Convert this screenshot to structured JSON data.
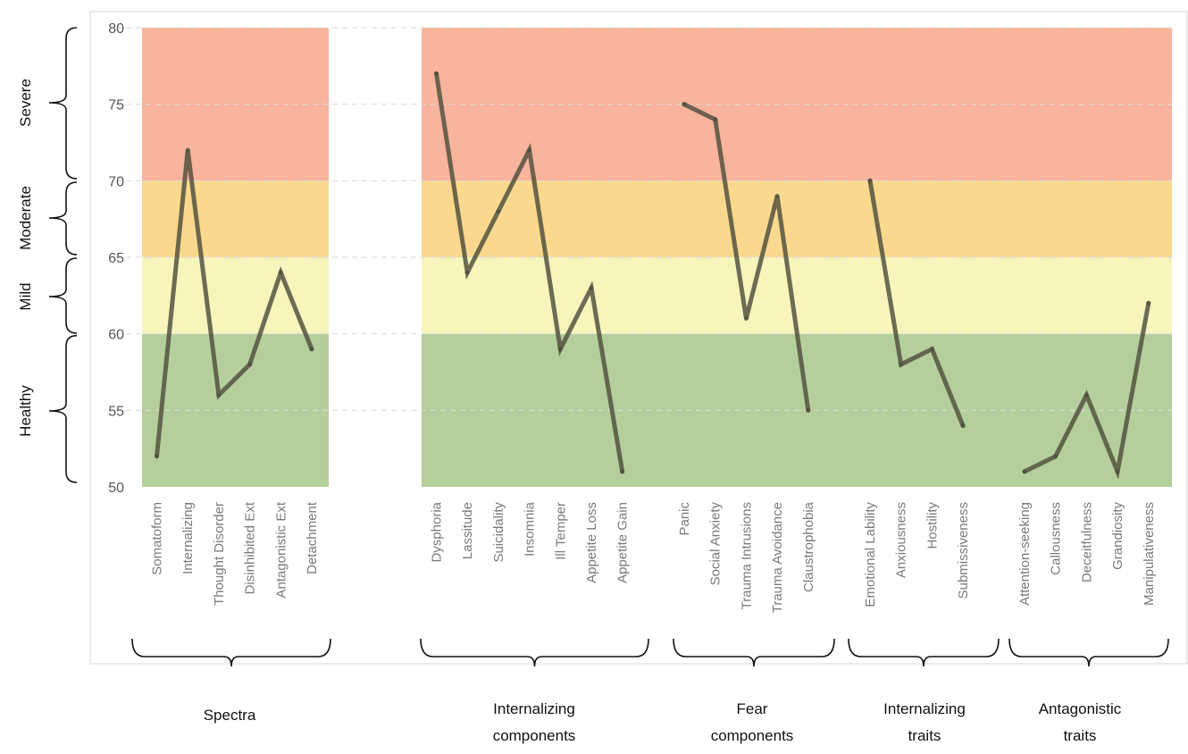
{
  "chart_data": {
    "type": "line",
    "ylim": [
      50,
      80
    ],
    "y_ticks": [
      50,
      55,
      60,
      65,
      70,
      75,
      80
    ],
    "grid": "dashed horizontal",
    "bands": [
      {
        "from": 50,
        "to": 60,
        "color": "#b5cf9c",
        "label": "Healthy"
      },
      {
        "from": 60,
        "to": 65,
        "color": "#f7f4bc",
        "label": "Mild"
      },
      {
        "from": 65,
        "to": 70,
        "color": "#fad98e",
        "label": "Moderate"
      },
      {
        "from": 70,
        "to": 80,
        "color": "#f8b49c",
        "label": "Severe"
      }
    ],
    "line_color": "#4e4e3c",
    "groups": [
      {
        "name": [
          "Spectra"
        ],
        "categories": [
          "Somatoform",
          "Internalizing",
          "Thought Disorder",
          "Disinhibited Ext",
          "Antagonistic Ext",
          "Detachment"
        ],
        "values": [
          52,
          72,
          56,
          58,
          64,
          59
        ]
      },
      {
        "name": [
          "Internalizing",
          "components"
        ],
        "categories": [
          "Dysphoria",
          "Lassitude",
          "Suicidality",
          "Insomnia",
          "Ill Temper",
          "Appetite Loss",
          "Appetite Gain"
        ],
        "values": [
          77,
          64,
          68,
          72,
          59,
          63,
          51
        ]
      },
      {
        "name": [
          "Fear",
          "components"
        ],
        "categories": [
          "Panic",
          "Social Anxiety",
          "Trauma Intrusions",
          "Trauma Avoidance",
          "Claustrophobia"
        ],
        "values": [
          75,
          74,
          61,
          69,
          55
        ]
      },
      {
        "name": [
          "Internalizing",
          "traits"
        ],
        "categories": [
          "Emotional Lability",
          "Anxiousness",
          "Hostility",
          "Submissiveness"
        ],
        "values": [
          70,
          58,
          59,
          54
        ]
      },
      {
        "name": [
          "Antagonistic",
          "traits"
        ],
        "categories": [
          "Attention-seeking",
          "Callousness",
          "Deceitfulness",
          "Grandiosity",
          "Manipulativeness"
        ],
        "values": [
          51,
          52,
          56,
          51,
          62
        ]
      }
    ]
  }
}
